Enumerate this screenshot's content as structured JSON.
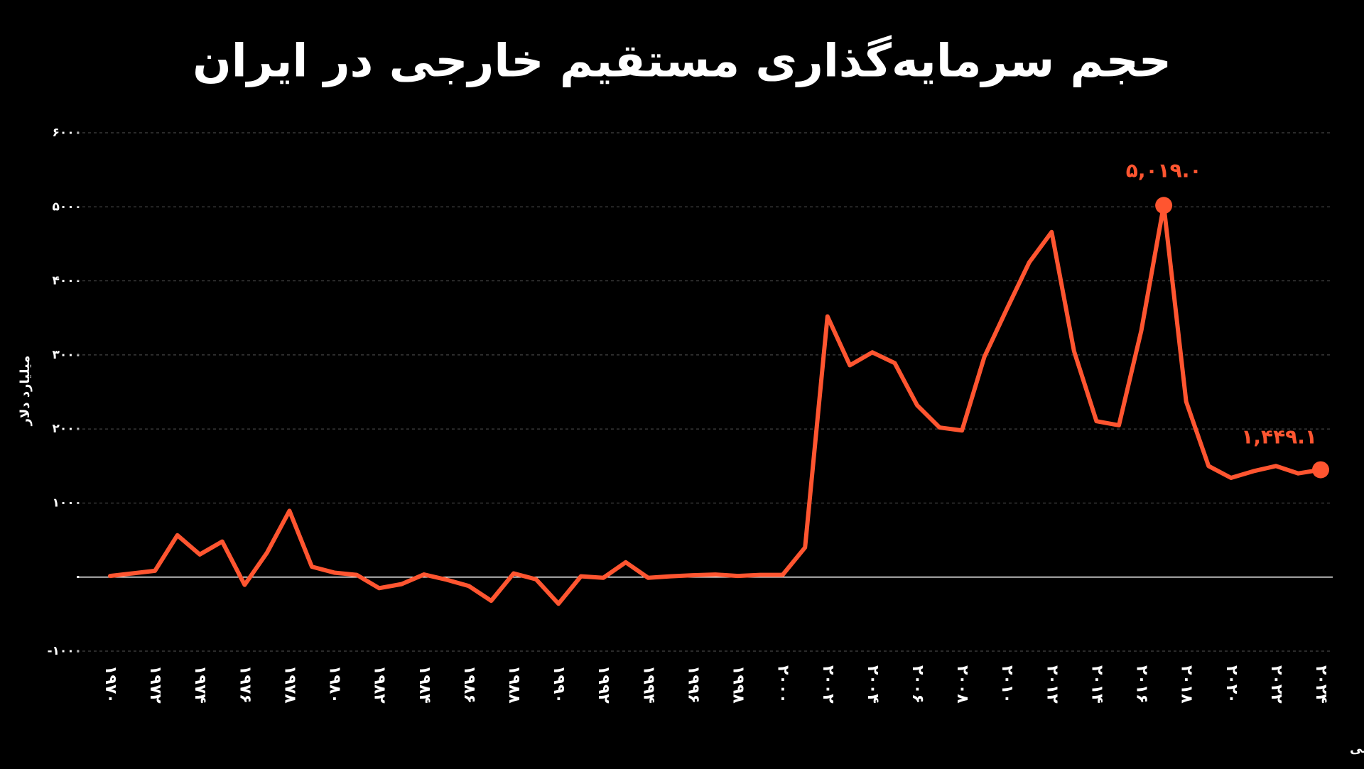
{
  "chart_data": {
    "type": "line",
    "title": "حجم سرمایه‌گذاری مستقیم خارجی در ایران",
    "y_label": "میلیارد دلار",
    "source": "منبع داده: بانک جهانی",
    "color": "#ff5530",
    "grid": true,
    "x": [
      1970,
      1971,
      1972,
      1973,
      1974,
      1975,
      1976,
      1977,
      1978,
      1979,
      1980,
      1981,
      1982,
      1983,
      1984,
      1985,
      1986,
      1987,
      1988,
      1989,
      1990,
      1991,
      1992,
      1993,
      1994,
      1995,
      1996,
      1997,
      1998,
      1999,
      2000,
      2001,
      2002,
      2003,
      2004,
      2005,
      2006,
      2007,
      2008,
      2009,
      2010,
      2011,
      2012,
      2013,
      2014,
      2015,
      2016,
      2017,
      2018,
      2019,
      2020,
      2021,
      2022,
      2023,
      2024
    ],
    "values": [
      15,
      50,
      85,
      565,
      305,
      480,
      -105,
      330,
      895,
      140,
      60,
      30,
      -150,
      -95,
      35,
      -35,
      -120,
      -320,
      50,
      -30,
      -360,
      10,
      -10,
      200,
      -10,
      10,
      25,
      35,
      15,
      30,
      30,
      400,
      3520,
      2860,
      3035,
      2890,
      2320,
      2020,
      1980,
      2975,
      3620,
      4250,
      4660,
      3050,
      2105,
      2050,
      3330,
      5019,
      2370,
      1500,
      1340,
      1430,
      1500,
      1400,
      1449.1
    ],
    "value_labels": [
      null,
      null,
      null,
      null,
      null,
      null,
      null,
      null,
      null,
      null,
      null,
      null,
      null,
      null,
      null,
      null,
      null,
      null,
      null,
      null,
      null,
      null,
      null,
      null,
      null,
      null,
      null,
      null,
      null,
      null,
      null,
      null,
      null,
      null,
      null,
      null,
      null,
      null,
      null,
      null,
      null,
      null,
      null,
      null,
      null,
      null,
      null,
      "۵,۰۱۹.۰",
      null,
      null,
      null,
      null,
      null,
      null,
      "۱,۴۴۹.۱"
    ],
    "xlim": [
      1970,
      2024
    ],
    "xticks": [
      {
        "value": 1970,
        "label": "۱۹۷۰"
      },
      {
        "value": 1972,
        "label": "۱۹۷۲"
      },
      {
        "value": 1974,
        "label": "۱۹۷۴"
      },
      {
        "value": 1976,
        "label": "۱۹۷۶"
      },
      {
        "value": 1978,
        "label": "۱۹۷۸"
      },
      {
        "value": 1980,
        "label": "۱۹۸۰"
      },
      {
        "value": 1982,
        "label": "۱۹۸۲"
      },
      {
        "value": 1984,
        "label": "۱۹۸۴"
      },
      {
        "value": 1986,
        "label": "۱۹۸۶"
      },
      {
        "value": 1988,
        "label": "۱۹۸۸"
      },
      {
        "value": 1990,
        "label": "۱۹۹۰"
      },
      {
        "value": 1992,
        "label": "۱۹۹۲"
      },
      {
        "value": 1994,
        "label": "۱۹۹۴"
      },
      {
        "value": 1996,
        "label": "۱۹۹۶"
      },
      {
        "value": 1998,
        "label": "۱۹۹۸"
      },
      {
        "value": 2000,
        "label": "۲۰۰۰"
      },
      {
        "value": 2002,
        "label": "۲۰۰۲"
      },
      {
        "value": 2004,
        "label": "۲۰۰۴"
      },
      {
        "value": 2006,
        "label": "۲۰۰۶"
      },
      {
        "value": 2008,
        "label": "۲۰۰۸"
      },
      {
        "value": 2010,
        "label": "۲۰۱۰"
      },
      {
        "value": 2012,
        "label": "۲۰۱۲"
      },
      {
        "value": 2014,
        "label": "۲۰۱۴"
      },
      {
        "value": 2016,
        "label": "۲۰۱۶"
      },
      {
        "value": 2018,
        "label": "۲۰۱۸"
      },
      {
        "value": 2020,
        "label": "۲۰۲۰"
      },
      {
        "value": 2022,
        "label": "۲۰۲۲"
      },
      {
        "value": 2024,
        "label": "۲۰۲۴"
      }
    ],
    "ylim": [
      -1000,
      6000
    ],
    "yticks": [
      {
        "value": -1000,
        "label": "-۱۰۰۰"
      },
      {
        "value": 0,
        "label": "۰"
      },
      {
        "value": 1000,
        "label": "۱۰۰۰"
      },
      {
        "value": 2000,
        "label": "۲۰۰۰"
      },
      {
        "value": 3000,
        "label": "۳۰۰۰"
      },
      {
        "value": 4000,
        "label": "۴۰۰۰"
      },
      {
        "value": 5000,
        "label": "۵۰۰۰"
      },
      {
        "value": 6000,
        "label": "۶۰۰۰"
      }
    ]
  }
}
